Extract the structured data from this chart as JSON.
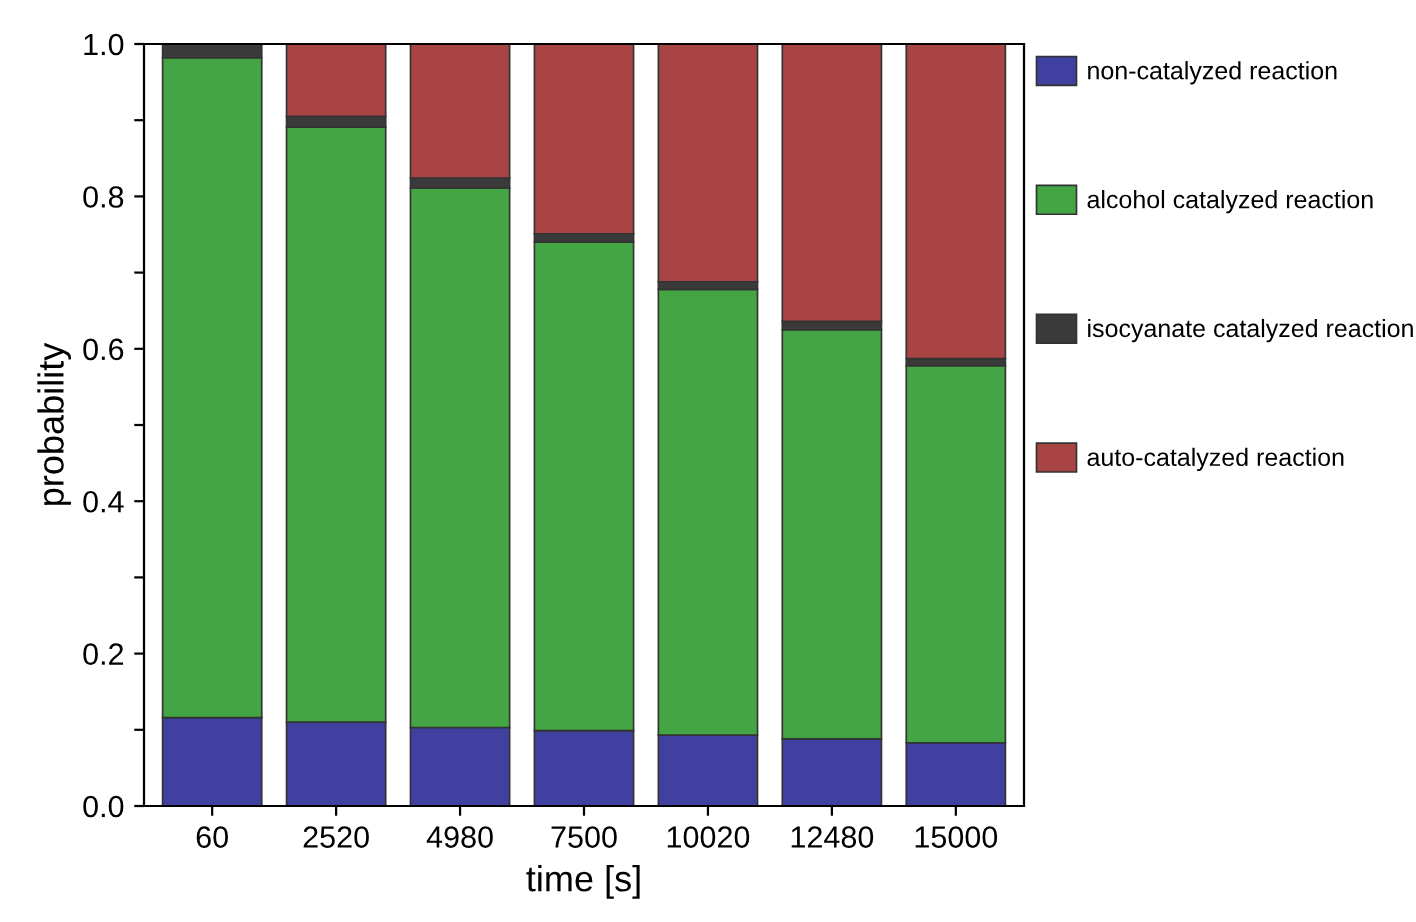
{
  "chart_data": {
    "type": "bar",
    "stacked": true,
    "xlabel": "time [s]",
    "ylabel": "probability",
    "categories": [
      "60",
      "2520",
      "4980",
      "7500",
      "10020",
      "12480",
      "15000"
    ],
    "series": [
      {
        "name": "non-catalyzed reaction",
        "color": "#4040a0",
        "values": [
          0.116,
          0.11,
          0.103,
          0.099,
          0.093,
          0.088,
          0.083
        ]
      },
      {
        "name": "alcohol catalyzed reaction",
        "color": "#44a544",
        "values": [
          0.866,
          0.781,
          0.708,
          0.641,
          0.585,
          0.537,
          0.495
        ]
      },
      {
        "name": "isocyanate catalyzed reaction",
        "color": "#3a3a3a",
        "values": [
          0.018,
          0.014,
          0.013,
          0.011,
          0.01,
          0.011,
          0.009
        ]
      },
      {
        "name": "auto-catalyzed reaction",
        "color": "#a84444",
        "values": [
          null,
          0.095,
          0.176,
          0.249,
          0.312,
          0.364,
          0.413
        ]
      }
    ],
    "ylim": [
      0,
      1.0
    ],
    "yticks": [
      {
        "value": 0,
        "label": "0.0"
      },
      {
        "value": 0.1,
        "label": null
      },
      0.2,
      {
        "value": 0.3,
        "label": null
      },
      0.4,
      {
        "value": 0.5,
        "label": null
      },
      0.6,
      {
        "value": 0.7,
        "label": null
      },
      0.8,
      {
        "value": 0.9,
        "label": null
      },
      {
        "value": 1.0,
        "label": "1.0"
      }
    ],
    "grid": false,
    "legend": "right"
  }
}
